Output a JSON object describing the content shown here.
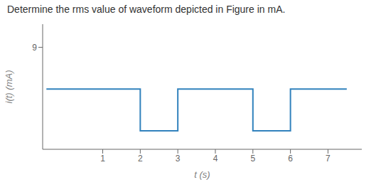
{
  "chart_data": {
    "type": "line",
    "title": "Determine the rms value of waveform depicted in Figure in mA.",
    "xlabel": "t (s)",
    "ylabel": "i(t) (mA)",
    "x": [
      -0.5,
      0,
      2,
      2,
      3,
      3,
      5,
      5,
      6,
      6,
      7.5
    ],
    "values": [
      0,
      0,
      0,
      -9,
      -9,
      0,
      0,
      -9,
      -9,
      0,
      0
    ],
    "xlim": [
      -0.6,
      7.9
    ],
    "ylim": [
      -13,
      14
    ],
    "xticks": [
      1,
      2,
      3,
      4,
      5,
      6,
      7
    ],
    "yticks": [
      9
    ],
    "grid": false
  }
}
